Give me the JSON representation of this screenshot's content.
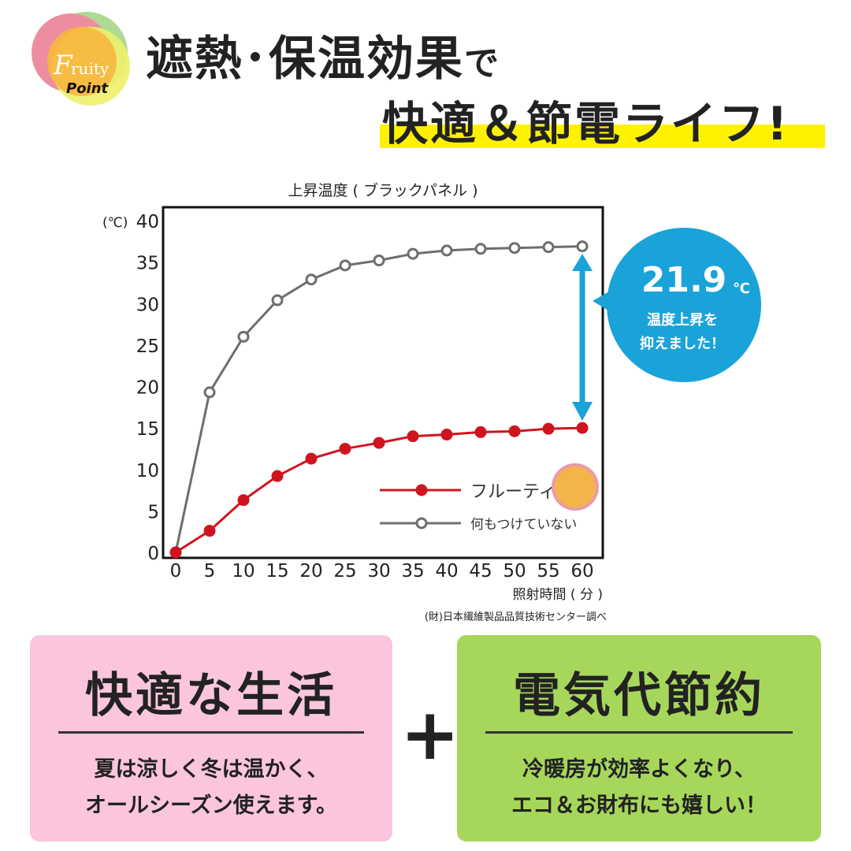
{
  "logo": {
    "text1": "Fruity",
    "text2": "Point"
  },
  "header": {
    "line1": "遮熱･保温効果",
    "line1_suffix": "で",
    "line2": "快適＆節電ライフ!"
  },
  "chart_data": {
    "type": "line",
    "title": "上昇温度 ( ブラックパネル )",
    "ylabel": "(℃)",
    "xlabel": "照射時間 ( 分 )",
    "source": "(財)日本繊維製品品質技術センター調べ",
    "x": [
      0,
      5,
      10,
      15,
      20,
      25,
      30,
      35,
      40,
      45,
      50,
      55,
      60
    ],
    "ylim": [
      0,
      40
    ],
    "yticks": [
      0,
      5,
      10,
      15,
      20,
      25,
      30,
      35,
      40
    ],
    "grid": false,
    "legend_placement": "bottom-right",
    "series": [
      {
        "name": "フルーティ",
        "color": "#d0141e",
        "marker": "filled",
        "values": [
          0,
          2.6,
          6.3,
          9.2,
          11.3,
          12.5,
          13.2,
          14.0,
          14.2,
          14.5,
          14.6,
          14.9,
          15.0
        ]
      },
      {
        "name": "何もつけていない",
        "color": "#6e6e6e",
        "marker": "open",
        "values": [
          0,
          19.3,
          26.0,
          30.4,
          32.9,
          34.6,
          35.2,
          36.0,
          36.4,
          36.6,
          36.7,
          36.8,
          36.9
        ]
      }
    ],
    "annotation": {
      "value": "21.9",
      "unit": "℃",
      "line1": "温度上昇を",
      "line2": "抑えました！",
      "color": "#1aa3d9"
    }
  },
  "cards": [
    {
      "title": "快適な生活",
      "line1": "夏は涼しく冬は温かく、",
      "line2": "オールシーズン使えます。",
      "color": "#fbc5dd"
    },
    {
      "title": "電気代節約",
      "line1": "冷暖房が効率よくなり、",
      "line2": "エコ＆お財布にも嬉しい！",
      "color": "#a6d75b"
    }
  ],
  "plus": "+"
}
